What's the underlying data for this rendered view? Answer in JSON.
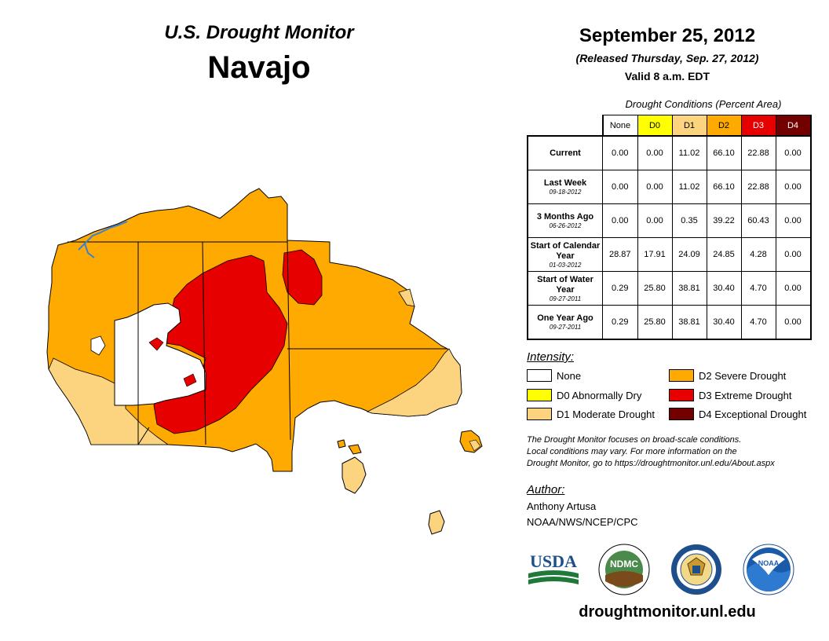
{
  "header": {
    "subtitle": "U.S. Drought Monitor",
    "region": "Navajo",
    "date": "September 25, 2012",
    "released": "(Released Thursday, Sep. 27, 2012)",
    "valid": "Valid 8 a.m. EDT"
  },
  "table": {
    "title": "Drought Conditions (Percent Area)",
    "columns": [
      {
        "label": "None",
        "color": "#ffffff"
      },
      {
        "label": "D0",
        "color": "#ffff00"
      },
      {
        "label": "D1",
        "color": "#fcd37f"
      },
      {
        "label": "D2",
        "color": "#ffaa00"
      },
      {
        "label": "D3",
        "color": "#e60000"
      },
      {
        "label": "D4",
        "color": "#730000"
      }
    ],
    "rows": [
      {
        "label": "Current",
        "date": "",
        "values": [
          "0.00",
          "0.00",
          "11.02",
          "66.10",
          "22.88",
          "0.00"
        ]
      },
      {
        "label": "Last Week",
        "date": "09-18-2012",
        "values": [
          "0.00",
          "0.00",
          "11.02",
          "66.10",
          "22.88",
          "0.00"
        ]
      },
      {
        "label": "3 Months Ago",
        "date": "06-26-2012",
        "values": [
          "0.00",
          "0.00",
          "0.35",
          "39.22",
          "60.43",
          "0.00"
        ]
      },
      {
        "label": "Start of Calendar Year",
        "date": "01-03-2012",
        "values": [
          "28.87",
          "17.91",
          "24.09",
          "24.85",
          "4.28",
          "0.00"
        ]
      },
      {
        "label": "Start of Water Year",
        "date": "09-27-2011",
        "values": [
          "0.29",
          "25.80",
          "38.81",
          "30.40",
          "4.70",
          "0.00"
        ]
      },
      {
        "label": "One Year Ago",
        "date": "09-27-2011",
        "values": [
          "0.29",
          "25.80",
          "38.81",
          "30.40",
          "4.70",
          "0.00"
        ]
      }
    ]
  },
  "legend": {
    "title": "Intensity:",
    "items": [
      {
        "label": "None",
        "color": "#ffffff"
      },
      {
        "label": "D0 Abnormally Dry",
        "color": "#ffff00"
      },
      {
        "label": "D1 Moderate Drought",
        "color": "#fcd37f"
      },
      {
        "label": "D2 Severe Drought",
        "color": "#ffaa00"
      },
      {
        "label": "D3 Extreme Drought",
        "color": "#e60000"
      },
      {
        "label": "D4 Exceptional Drought",
        "color": "#730000"
      }
    ]
  },
  "note": [
    "The Drought Monitor focuses on broad-scale conditions.",
    "Local conditions may vary. For more information on the",
    "Drought Monitor, go to https://droughtmonitor.unl.edu/About.aspx"
  ],
  "author": {
    "label": "Author:",
    "name": "Anthony Artusa",
    "org": "NOAA/NWS/NCEP/CPC"
  },
  "logos": {
    "usda": "USDA",
    "ndmc": "NDMC",
    "noaa": "NOAA"
  },
  "website": "droughtmonitor.unl.edu",
  "colors": {
    "none": "#ffffff",
    "d0": "#ffff00",
    "d1": "#fcd37f",
    "d2": "#ffaa00",
    "d3": "#e60000",
    "d4": "#730000",
    "water": "#3b7fd6"
  }
}
